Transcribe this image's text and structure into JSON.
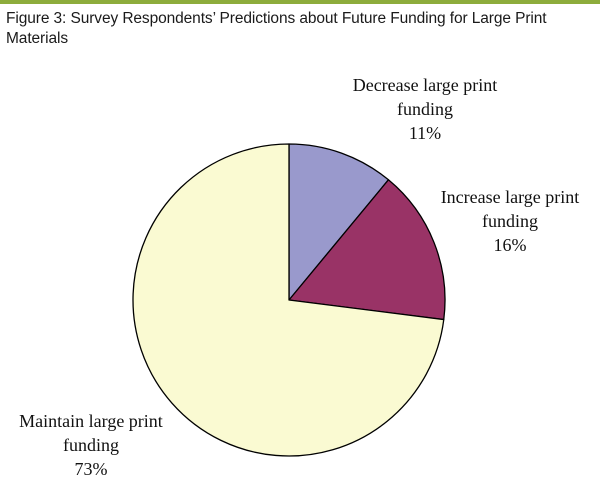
{
  "figure": {
    "title": "Figure 3: Survey Respondents’ Predictions about Future Funding for Large Print Materials"
  },
  "colors": {
    "rule": "#8dac3c",
    "decrease": "#9999cc",
    "increase": "#993366",
    "maintain": "#fafad2",
    "outline": "#000000"
  },
  "chart_data": {
    "type": "pie",
    "title": "Figure 3: Survey Respondents’ Predictions about Future Funding for Large Print Materials",
    "start": "12 o'clock, clockwise",
    "slices": [
      {
        "category": "Decrease large print funding",
        "label_lines": [
          "Decrease large print",
          "funding"
        ],
        "value": 11,
        "value_label": "11%",
        "color": "#9999cc"
      },
      {
        "category": "Increase large print funding",
        "label_lines": [
          "Increase large print",
          "funding"
        ],
        "value": 16,
        "value_label": "16%",
        "color": "#993366"
      },
      {
        "category": "Maintain large print funding",
        "label_lines": [
          "Maintain large print",
          "funding"
        ],
        "value": 73,
        "value_label": "73%",
        "color": "#fafad2"
      }
    ]
  }
}
